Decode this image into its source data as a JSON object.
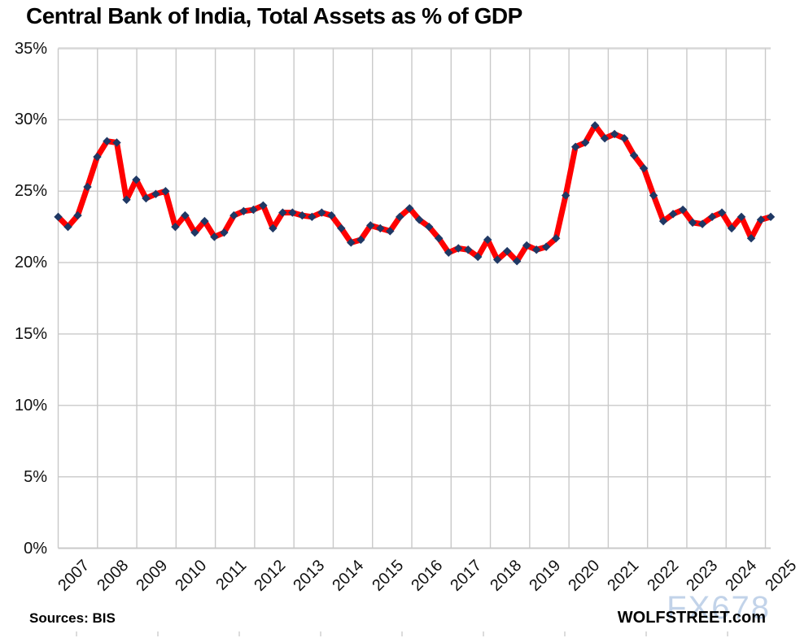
{
  "title": "Central Bank of India, Total Assets as % of GDP",
  "footer": {
    "sources": "Sources: BIS",
    "branding": "WOLFSTREET.com",
    "watermark": "FX678"
  },
  "colors": {
    "line": "#ff0000",
    "marker": "#1f3864",
    "gridline": "#c9c9c9",
    "border": "#d7d7d7",
    "text": "#000000",
    "watermark": "#b8cce6"
  },
  "chart_data": {
    "type": "line",
    "title": "Central Bank of India, Total Assets as % of GDP",
    "xlabel": "",
    "ylabel": "",
    "frequency": "quarterly",
    "x_start": "2007-Q1",
    "x_end": "2025-Q2",
    "x_tick_labels": [
      "2007",
      "2008",
      "2009",
      "2010",
      "2011",
      "2012",
      "2013",
      "2014",
      "2015",
      "2016",
      "2017",
      "2018",
      "2019",
      "2020",
      "2021",
      "2022",
      "2023",
      "2024",
      "2025"
    ],
    "y_tick_labels": [
      "35%",
      "30%",
      "25%",
      "20%",
      "15%",
      "10%",
      "5%",
      "0%"
    ],
    "ylim": [
      0,
      35
    ],
    "grid": true,
    "legend": "none",
    "series": [
      {
        "name": "Total assets as % of GDP",
        "color": "#ff0000",
        "marker": "diamond",
        "marker_color": "#1f3864",
        "values": [
          23.2,
          22.5,
          23.3,
          25.3,
          27.4,
          28.5,
          28.4,
          24.4,
          25.8,
          24.5,
          24.8,
          25.0,
          22.5,
          23.3,
          22.1,
          22.9,
          21.8,
          22.1,
          23.3,
          23.6,
          23.7,
          24.0,
          22.4,
          23.5,
          23.5,
          23.3,
          23.2,
          23.5,
          23.3,
          22.4,
          21.4,
          21.6,
          22.6,
          22.4,
          22.2,
          23.2,
          23.8,
          23.0,
          22.5,
          21.7,
          20.7,
          21.0,
          20.9,
          20.4,
          21.6,
          20.2,
          20.8,
          20.1,
          21.2,
          20.9,
          21.1,
          21.7,
          24.7,
          28.1,
          28.4,
          29.6,
          28.7,
          29.0,
          28.7,
          27.5,
          26.6,
          24.7,
          22.9,
          23.4,
          23.7,
          22.8,
          22.7,
          23.2,
          23.5,
          22.4,
          23.2,
          21.7,
          23.0,
          23.2
        ]
      }
    ]
  }
}
